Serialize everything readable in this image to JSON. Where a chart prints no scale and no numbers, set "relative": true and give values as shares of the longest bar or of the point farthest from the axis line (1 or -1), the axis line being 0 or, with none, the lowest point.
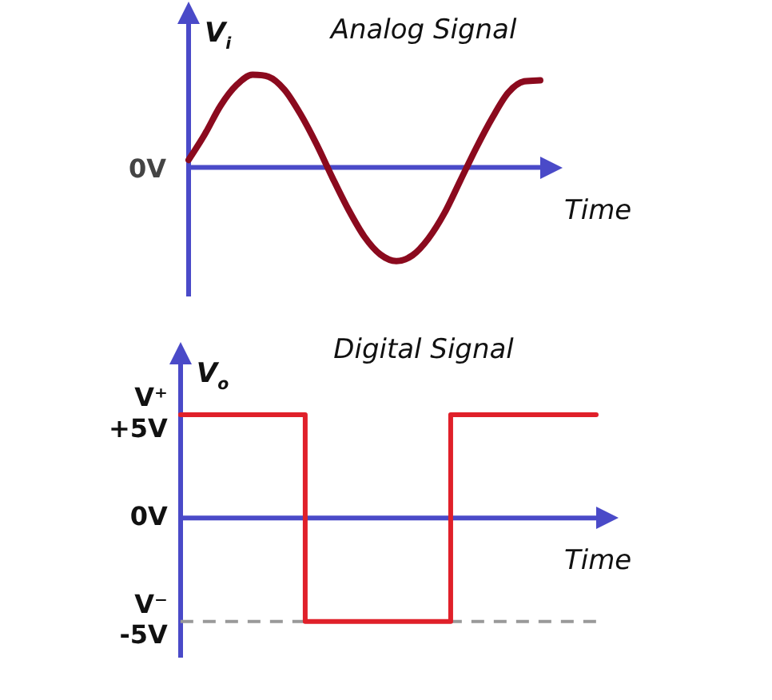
{
  "chart_data": [
    {
      "type": "line",
      "title": "Analog Signal",
      "xlabel": "Time",
      "ylabel": "V$_{i}$",
      "relative": true,
      "annotations": [
        "0V"
      ],
      "ref_lines": [
        {
          "axis": "y",
          "value": 0,
          "color": "#4a4ac8"
        }
      ],
      "categories": [
        null,
        null,
        null,
        null,
        null,
        null,
        null,
        null,
        null,
        null,
        null,
        null,
        null,
        null,
        null,
        null,
        null,
        null,
        null,
        null,
        null,
        null,
        null
      ],
      "series": [
        {
          "color": "#8b0a1e",
          "values": [
            0.08,
            0.35,
            0.66,
            0.88,
            0.99,
            0.97,
            0.83,
            0.57,
            0.25,
            -0.11,
            -0.45,
            -0.74,
            -0.93,
            -1.0,
            -0.94,
            -0.76,
            -0.49,
            -0.14,
            0.21,
            0.53,
            0.8,
            0.92,
            0.93
          ]
        }
      ]
    },
    {
      "type": "step",
      "title": "Digital Signal",
      "xlabel": "Time",
      "ylabel": "V$_{o}$",
      "ylim": [
        -6.7,
        7.5
      ],
      "tick_labels": "y",
      "yticks": [
        {
          "value": 5,
          "label": "V⁺\n+5V"
        },
        {
          "value": 0,
          "label": "0V"
        },
        {
          "value": -5,
          "label": "V⁻\n-5V"
        }
      ],
      "ref_lines": [
        {
          "axis": "y",
          "value": -5,
          "color": "#999999",
          "line_style": "dashed"
        },
        {
          "axis": "y",
          "value": 0,
          "color": "#4a4ac8"
        }
      ],
      "categories": [
        null,
        null,
        null,
        null,
        null,
        null,
        null,
        null,
        null,
        null,
        null,
        null,
        null,
        null,
        null,
        null,
        null,
        null,
        null,
        null,
        null
      ],
      "series": [
        {
          "color": "#e0202a",
          "values": [
            5,
            5,
            5,
            5,
            5,
            5,
            5,
            -5,
            -5,
            -5,
            -5,
            -5,
            -5,
            -5,
            5,
            5,
            5,
            5,
            5,
            5,
            5
          ]
        }
      ]
    }
  ]
}
